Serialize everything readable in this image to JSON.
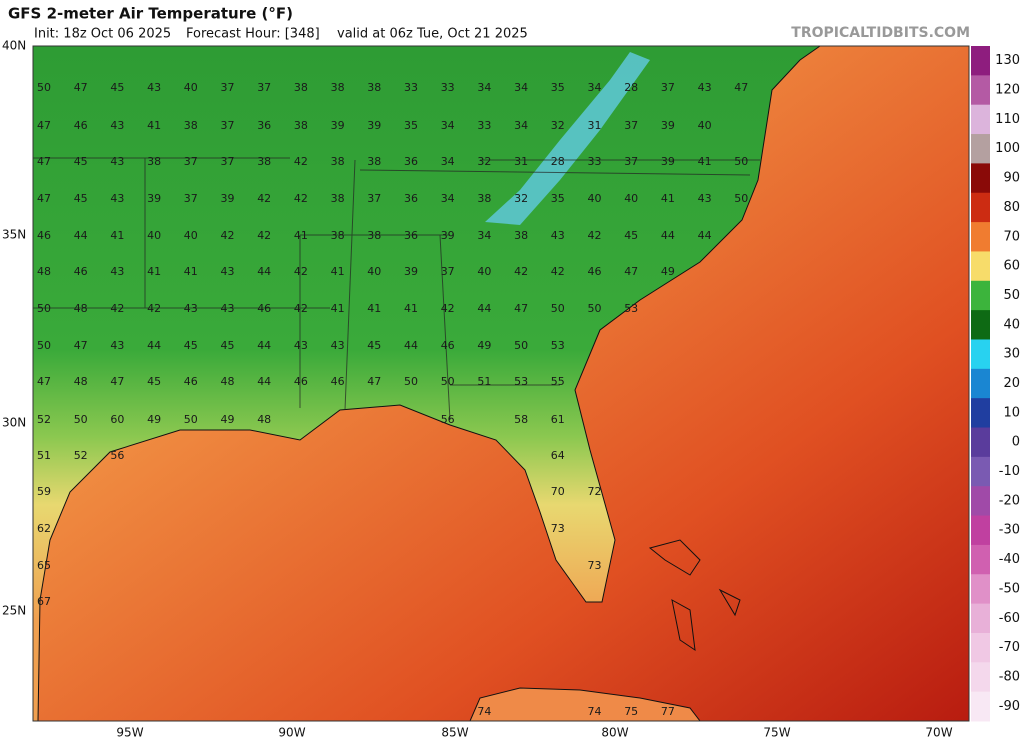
{
  "header": {
    "title": "GFS 2-meter Air Temperature (°F)",
    "init": "Init: 18z Oct 06 2025",
    "forecast_hour": "Forecast Hour: [348]",
    "valid": "valid at 06z Tue, Oct 21 2025",
    "site": "TROPICALTIDBITS.COM"
  },
  "map": {
    "lat_labels": [
      "40N",
      "35N",
      "30N",
      "25N"
    ],
    "lon_labels": [
      "95W",
      "90W",
      "85W",
      "80W",
      "75W",
      "70W"
    ],
    "temperatures": [
      [
        50,
        47,
        45,
        43,
        40,
        37,
        37,
        38,
        38,
        38,
        33,
        33,
        34,
        34,
        35,
        34,
        28,
        37,
        43,
        47
      ],
      [
        47,
        46,
        43,
        41,
        38,
        37,
        36,
        38,
        39,
        39,
        35,
        34,
        33,
        34,
        32,
        31,
        37,
        39,
        40,
        null
      ],
      [
        47,
        45,
        43,
        38,
        37,
        37,
        38,
        42,
        38,
        38,
        36,
        34,
        32,
        31,
        28,
        33,
        37,
        39,
        41,
        50
      ],
      [
        47,
        45,
        43,
        39,
        37,
        39,
        42,
        42,
        38,
        37,
        36,
        34,
        38,
        32,
        35,
        40,
        40,
        41,
        43,
        50
      ],
      [
        46,
        44,
        41,
        40,
        40,
        42,
        42,
        41,
        38,
        38,
        36,
        39,
        34,
        38,
        43,
        42,
        45,
        44,
        44,
        null
      ],
      [
        48,
        46,
        43,
        41,
        41,
        43,
        44,
        42,
        41,
        40,
        39,
        37,
        40,
        42,
        42,
        46,
        47,
        49,
        null,
        null
      ],
      [
        50,
        48,
        42,
        42,
        43,
        43,
        46,
        42,
        41,
        41,
        41,
        42,
        44,
        47,
        50,
        50,
        53,
        null,
        null,
        null
      ],
      [
        50,
        47,
        43,
        44,
        45,
        45,
        44,
        43,
        43,
        45,
        44,
        46,
        49,
        50,
        53,
        null,
        null,
        null,
        null,
        null
      ],
      [
        47,
        48,
        47,
        45,
        46,
        48,
        44,
        46,
        46,
        47,
        50,
        50,
        51,
        53,
        55,
        null,
        null,
        null,
        null,
        null
      ],
      [
        52,
        50,
        60,
        49,
        50,
        49,
        48,
        null,
        null,
        null,
        null,
        56,
        null,
        58,
        61,
        null,
        null,
        null,
        null,
        null
      ],
      [
        51,
        52,
        56,
        null,
        null,
        null,
        null,
        null,
        null,
        null,
        null,
        null,
        null,
        null,
        64,
        null,
        null,
        null,
        null,
        null
      ],
      [
        59,
        null,
        null,
        null,
        null,
        null,
        null,
        null,
        null,
        null,
        null,
        null,
        null,
        null,
        70,
        72,
        null,
        null,
        null,
        null
      ],
      [
        62,
        null,
        null,
        null,
        null,
        null,
        null,
        null,
        null,
        null,
        null,
        null,
        null,
        null,
        73,
        null,
        null,
        null,
        null,
        null
      ],
      [
        65,
        null,
        null,
        null,
        null,
        null,
        null,
        null,
        null,
        null,
        null,
        null,
        null,
        null,
        null,
        73,
        null,
        null,
        null,
        null
      ],
      [
        67,
        null,
        null,
        null,
        null,
        null,
        null,
        null,
        null,
        null,
        null,
        null,
        null,
        null,
        null,
        null,
        null,
        null,
        null,
        null
      ],
      [
        null,
        null,
        null,
        null,
        null,
        null,
        null,
        null,
        null,
        null,
        null,
        null,
        74,
        null,
        null,
        74,
        75,
        77,
        null,
        null
      ]
    ]
  },
  "colorbar": {
    "ticks": [
      130,
      120,
      110,
      100,
      90,
      80,
      70,
      60,
      50,
      40,
      30,
      20,
      10,
      0,
      -10,
      -20,
      -30,
      -40,
      -50,
      -60,
      -70,
      -80,
      -90
    ]
  }
}
